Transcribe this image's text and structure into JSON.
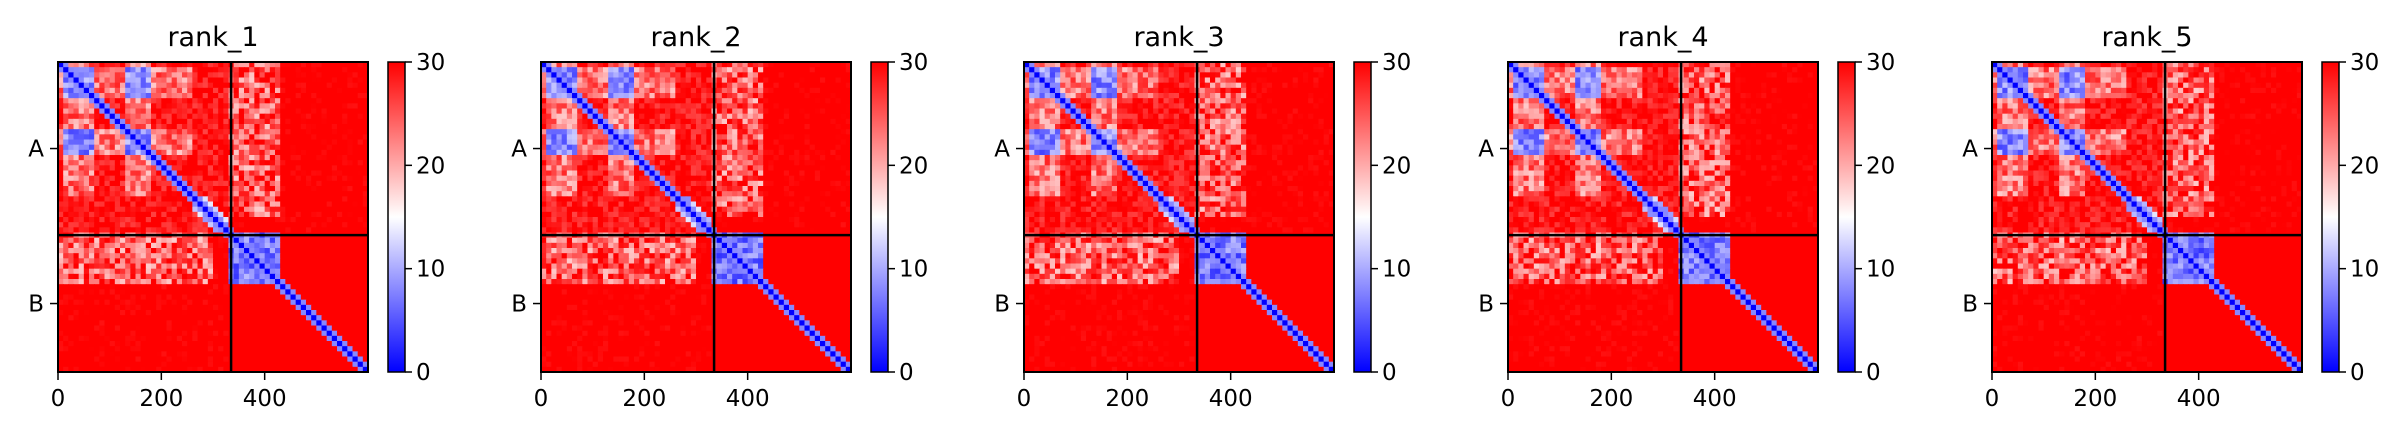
{
  "chart_data": {
    "type": "heatmap",
    "colormap": {
      "name": "bwr",
      "low": "#0000ff",
      "mid": "#ffffff",
      "high": "#ff0000"
    },
    "color_range": [
      0,
      30
    ],
    "colorbar_ticks": [
      "0",
      "10",
      "20",
      "30"
    ],
    "x_range": [
      0,
      600
    ],
    "x_ticks": [
      0,
      200,
      400
    ],
    "chain_boundary": 335,
    "chain_labels": [
      "A",
      "B"
    ],
    "panels": [
      {
        "title": "rank_1"
      },
      {
        "title": "rank_2"
      },
      {
        "title": "rank_3"
      },
      {
        "title": "rank_4"
      },
      {
        "title": "rank_5"
      }
    ]
  }
}
